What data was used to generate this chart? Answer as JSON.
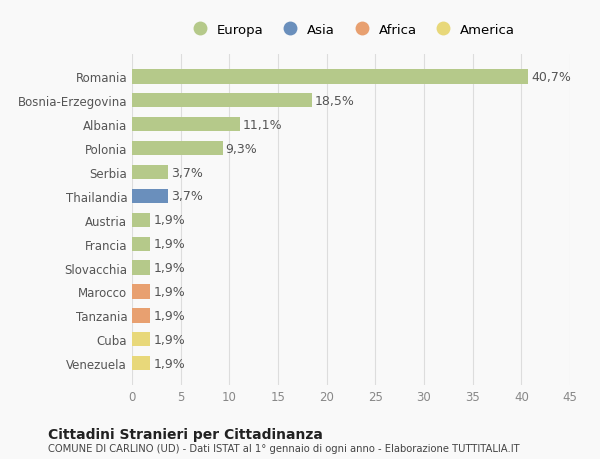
{
  "categories": [
    "Venezuela",
    "Cuba",
    "Tanzania",
    "Marocco",
    "Slovacchia",
    "Francia",
    "Austria",
    "Thailandia",
    "Serbia",
    "Polonia",
    "Albania",
    "Bosnia-Erzegovina",
    "Romania"
  ],
  "values": [
    1.9,
    1.9,
    1.9,
    1.9,
    1.9,
    1.9,
    1.9,
    3.7,
    3.7,
    9.3,
    11.1,
    18.5,
    40.7
  ],
  "labels": [
    "1,9%",
    "1,9%",
    "1,9%",
    "1,9%",
    "1,9%",
    "1,9%",
    "1,9%",
    "3,7%",
    "3,7%",
    "9,3%",
    "11,1%",
    "18,5%",
    "40,7%"
  ],
  "colors": [
    "#e8d87a",
    "#e8d87a",
    "#e8a070",
    "#e8a070",
    "#b5c98a",
    "#b5c98a",
    "#b5c98a",
    "#6a8fbc",
    "#b5c98a",
    "#b5c98a",
    "#b5c98a",
    "#b5c98a",
    "#b5c98a"
  ],
  "legend_labels": [
    "Europa",
    "Asia",
    "Africa",
    "America"
  ],
  "legend_colors": [
    "#b5c98a",
    "#6a8fbc",
    "#e8a070",
    "#e8d87a"
  ],
  "title": "Cittadini Stranieri per Cittadinanza",
  "subtitle": "COMUNE DI CARLINO (UD) - Dati ISTAT al 1° gennaio di ogni anno - Elaborazione TUTTITALIA.IT",
  "xlim": [
    0,
    45
  ],
  "xticks": [
    0,
    5,
    10,
    15,
    20,
    25,
    30,
    35,
    40,
    45
  ],
  "background_color": "#f9f9f9",
  "bar_height": 0.6,
  "label_fontsize": 9,
  "tick_fontsize": 8.5
}
